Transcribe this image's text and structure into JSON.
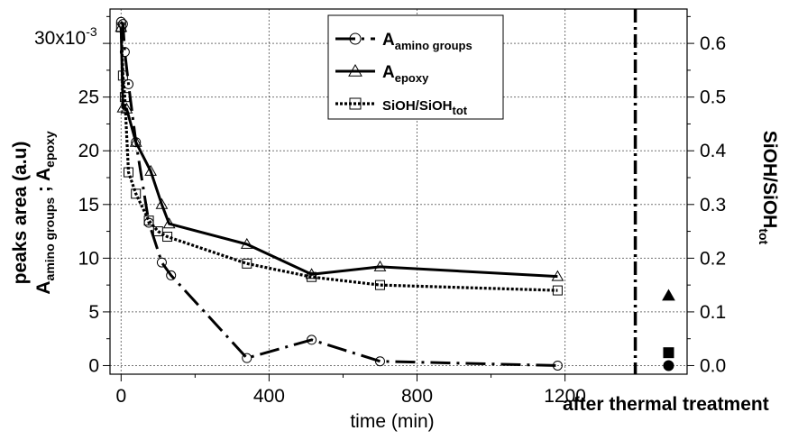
{
  "chart_data": {
    "type": "line",
    "xlabel": "time (min)",
    "ylabel_left": {
      "main": "peaks area (a.u)",
      "a1": "A",
      "a1_sub": "amino groups",
      "sep": " ; ",
      "a2": "A",
      "a2_sub": "epoxy"
    },
    "ylabel_right": {
      "main": "SiOH/SiOH",
      "sub": "tot"
    },
    "left_multiplier_label": "30x10",
    "left_multiplier_exp": "-3",
    "xlim": [
      -30,
      1530
    ],
    "ylim_left": [
      -0.8,
      33.2
    ],
    "ylim_right": [
      -0.016,
      0.664
    ],
    "x_ticks": [
      0,
      400,
      800,
      1200
    ],
    "y_left_ticks": [
      0,
      5,
      10,
      15,
      20,
      25
    ],
    "y_right_ticks": [
      0.0,
      0.1,
      0.2,
      0.3,
      0.4,
      0.5,
      0.6
    ],
    "extra_x_label": "after thermal treatment",
    "thermal_marker_x": 1390,
    "after_treatment_x": 1480,
    "grid": true,
    "legend_position": "top-center",
    "series": [
      {
        "name": "A",
        "name_sub": "amino groups",
        "axis": "left",
        "marker": "circle",
        "line_style": "dash-dot",
        "x": [
          0,
          5,
          10,
          20,
          40,
          75,
          110,
          135,
          340,
          515,
          700,
          1180
        ],
        "y": [
          32,
          31.8,
          29.2,
          26.2,
          20.8,
          13.3,
          9.6,
          8.4,
          0.7,
          2.4,
          0.4,
          0.0
        ],
        "after_treatment": 0.0
      },
      {
        "name": "A",
        "name_sub": "epoxy",
        "axis": "left",
        "marker": "triangle",
        "line_style": "solid",
        "x": [
          0,
          5,
          15,
          40,
          80,
          110,
          130,
          340,
          515,
          700,
          1180
        ],
        "y": [
          31.5,
          24.0,
          23.9,
          20.8,
          18.1,
          15.0,
          13.2,
          11.3,
          8.5,
          9.2,
          8.3
        ],
        "after_treatment": 6.5
      },
      {
        "name": "SiOH/SiOH",
        "name_sub": "tot",
        "axis": "right",
        "marker": "square",
        "line_style": "dotted",
        "x": [
          0,
          5,
          10,
          20,
          40,
          75,
          100,
          125,
          340,
          515,
          700,
          1180
        ],
        "y": [
          0.63,
          0.54,
          0.5,
          0.36,
          0.32,
          0.27,
          0.25,
          0.24,
          0.19,
          0.165,
          0.15,
          0.14
        ],
        "after_treatment": 0.024
      }
    ]
  }
}
